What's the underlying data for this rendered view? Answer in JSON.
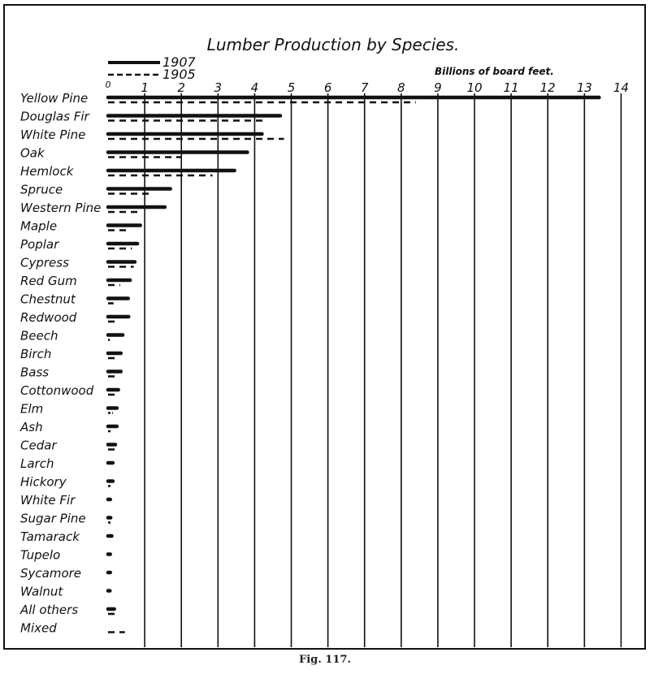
{
  "chart_data": {
    "type": "bar",
    "orientation": "horizontal",
    "title": "Lumber Production by Species.",
    "unit_label": "Billions of board feet.",
    "xlim": [
      0,
      14
    ],
    "x_ticks": [
      "0",
      "1",
      "2",
      "3",
      "4",
      "5",
      "6",
      "7",
      "8",
      "9",
      "10",
      "11",
      "12",
      "13",
      "14"
    ],
    "grid": "vertical lines at each unit",
    "legend_placement": "top-left",
    "categories": [
      "Yellow Pine",
      "Douglas Fir",
      "White Pine",
      "Oak",
      "Hemlock",
      "Spruce",
      "Western Pine",
      "Maple",
      "Poplar",
      "Cypress",
      "Red Gum",
      "Chestnut",
      "Redwood",
      "Beech",
      "Birch",
      "Bass",
      "Cottonwood",
      "Elm",
      "Ash",
      "Cedar",
      "Larch",
      "Hickory",
      "White Fir",
      "Sugar Pine",
      "Tamarack",
      "Tupelo",
      "Sycamore",
      "Walnut",
      "All others",
      "Mixed"
    ],
    "series": [
      {
        "name": "1907",
        "style": "solid",
        "values": [
          13.4,
          4.7,
          4.2,
          3.8,
          3.45,
          1.7,
          1.55,
          0.88,
          0.8,
          0.73,
          0.6,
          0.55,
          0.56,
          0.4,
          0.35,
          0.35,
          0.28,
          0.24,
          0.24,
          0.2,
          0.13,
          0.13,
          0.06,
          0.07,
          0.1,
          0.06,
          0.06,
          0.05,
          0.17,
          0
        ]
      },
      {
        "name": "1905",
        "style": "dashed",
        "values": [
          8.4,
          4.3,
          4.8,
          2.0,
          2.85,
          1.2,
          0.9,
          0.61,
          0.65,
          0.7,
          0.33,
          0.15,
          0.2,
          0.05,
          0.22,
          0.28,
          0.2,
          0.13,
          0.09,
          0.28,
          0,
          0.07,
          0,
          0.07,
          0,
          0,
          0,
          0,
          0.3,
          0.46
        ]
      }
    ]
  },
  "caption": "Fig. 117.",
  "colors": {
    "ink": "#111111",
    "paper": "#ffffff"
  }
}
